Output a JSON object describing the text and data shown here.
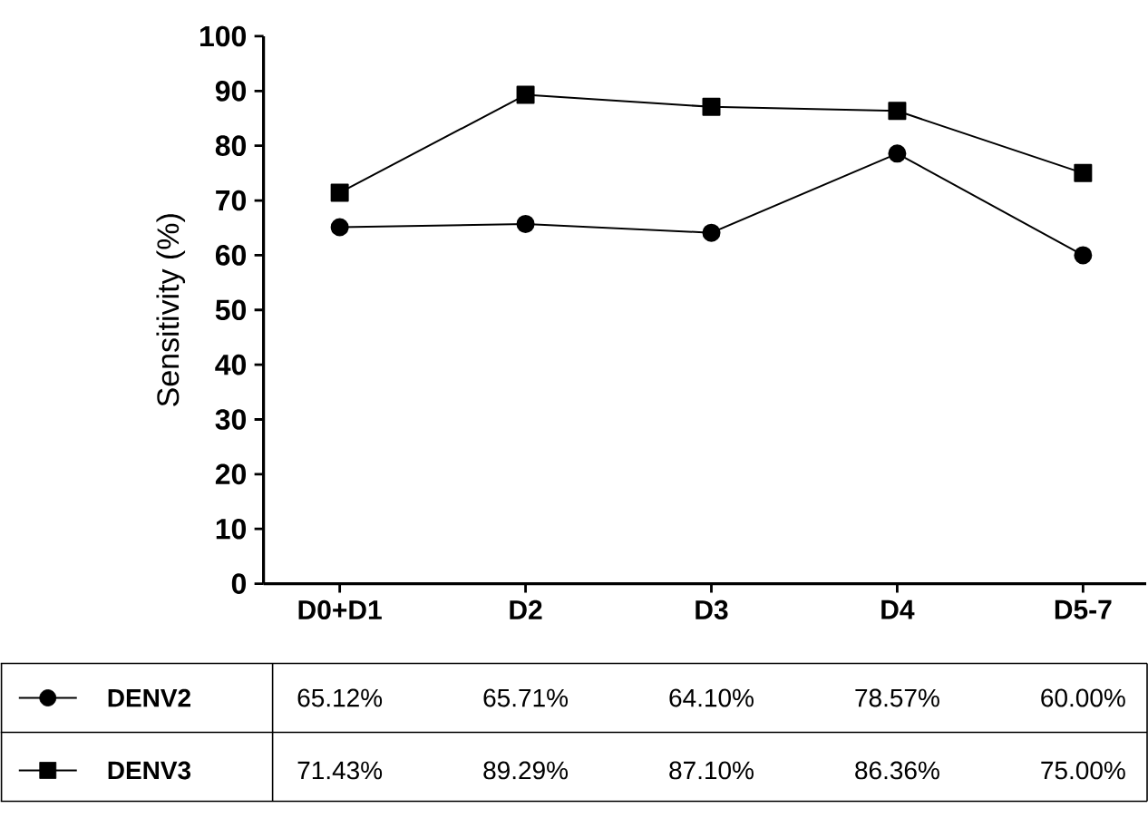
{
  "chart_data": {
    "type": "line",
    "ylabel": "Sensitivity (%)",
    "categories": [
      "D0+D1",
      "D2",
      "D3",
      "D4",
      "D5-7"
    ],
    "ylim": [
      0,
      100
    ],
    "yticks": [
      0,
      10,
      20,
      30,
      40,
      50,
      60,
      70,
      80,
      90,
      100
    ],
    "legend": "bottom",
    "grid": false,
    "line_style": "solid",
    "series": [
      {
        "name": "DENV2",
        "color": "#000000",
        "marker": "circle",
        "values": [
          65.12,
          65.71,
          64.1,
          78.57,
          60.0
        ],
        "value_labels": [
          "65.12%",
          "65.71%",
          "64.10%",
          "78.57%",
          "60.00%"
        ]
      },
      {
        "name": "DENV3",
        "color": "#000000",
        "marker": "square",
        "values": [
          71.43,
          89.29,
          87.1,
          86.36,
          75.0
        ],
        "value_labels": [
          "71.43%",
          "89.29%",
          "87.10%",
          "86.36%",
          "75.00%"
        ]
      }
    ]
  }
}
